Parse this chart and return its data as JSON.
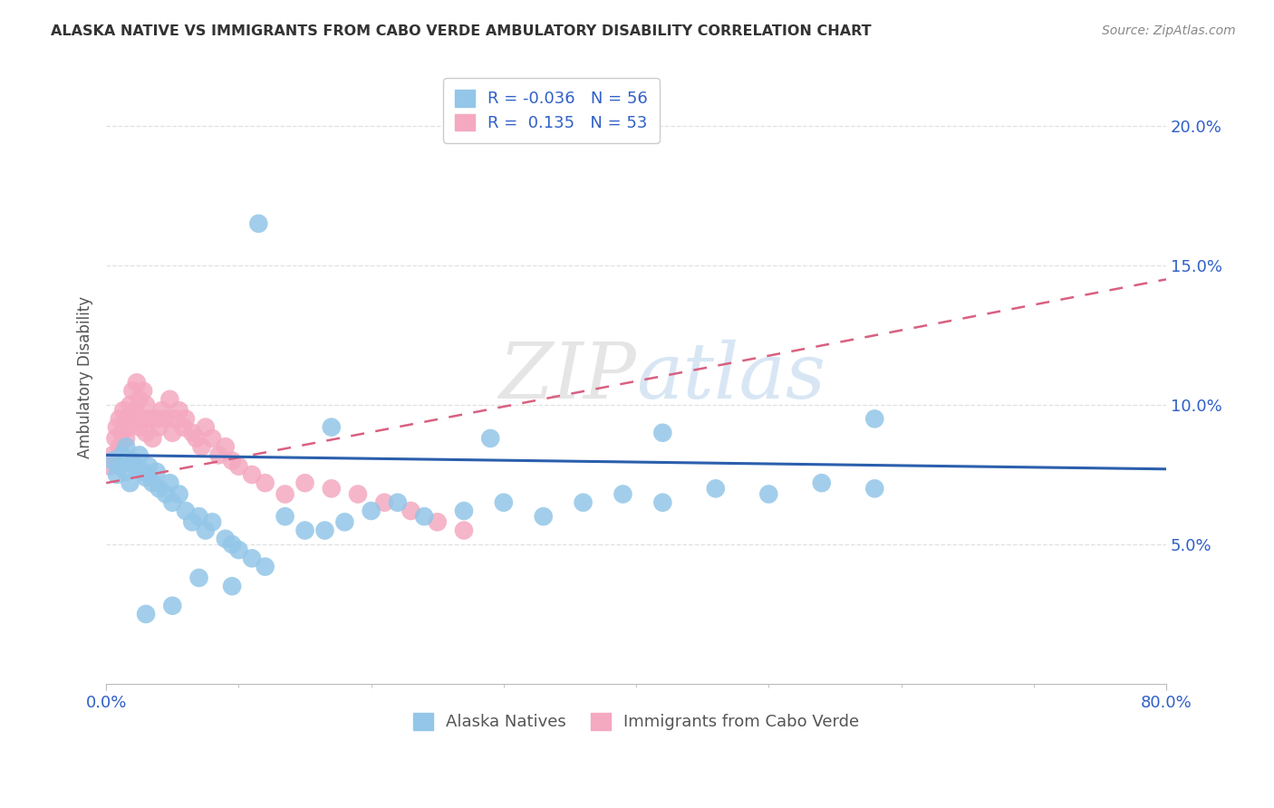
{
  "title": "ALASKA NATIVE VS IMMIGRANTS FROM CABO VERDE AMBULATORY DISABILITY CORRELATION CHART",
  "source": "Source: ZipAtlas.com",
  "ylabel": "Ambulatory Disability",
  "watermark": "ZIPatlas",
  "legend_bottom1": "Alaska Natives",
  "legend_bottom2": "Immigrants from Cabo Verde",
  "blue_color": "#93c6e8",
  "pink_color": "#f4a9c0",
  "blue_line_color": "#2b5fad",
  "pink_line_color": "#d96080",
  "grid_color": "#e0e0e0",
  "text_blue": "#3060c8",
  "label_color": "#555555",
  "xlim": [
    0.0,
    0.8
  ],
  "ylim": [
    0.0,
    0.22
  ],
  "blue_R": -0.036,
  "blue_N": 56,
  "pink_R": 0.135,
  "pink_N": 53,
  "blue_scatter_x": [
    0.005,
    0.008,
    0.01,
    0.012,
    0.015,
    0.015,
    0.018,
    0.02,
    0.022,
    0.025,
    0.028,
    0.03,
    0.032,
    0.035,
    0.038,
    0.04,
    0.045,
    0.048,
    0.05,
    0.055,
    0.06,
    0.065,
    0.07,
    0.075,
    0.08,
    0.09,
    0.095,
    0.1,
    0.11,
    0.12,
    0.135,
    0.15,
    0.165,
    0.18,
    0.2,
    0.22,
    0.24,
    0.27,
    0.3,
    0.33,
    0.36,
    0.39,
    0.42,
    0.46,
    0.5,
    0.54,
    0.58,
    0.115,
    0.03,
    0.05,
    0.07,
    0.095,
    0.58,
    0.42,
    0.29,
    0.17
  ],
  "blue_scatter_y": [
    0.08,
    0.075,
    0.078,
    0.082,
    0.076,
    0.085,
    0.072,
    0.08,
    0.078,
    0.082,
    0.076,
    0.074,
    0.078,
    0.072,
    0.076,
    0.07,
    0.068,
    0.072,
    0.065,
    0.068,
    0.062,
    0.058,
    0.06,
    0.055,
    0.058,
    0.052,
    0.05,
    0.048,
    0.045,
    0.042,
    0.06,
    0.055,
    0.055,
    0.058,
    0.062,
    0.065,
    0.06,
    0.062,
    0.065,
    0.06,
    0.065,
    0.068,
    0.065,
    0.07,
    0.068,
    0.072,
    0.07,
    0.165,
    0.025,
    0.028,
    0.038,
    0.035,
    0.095,
    0.09,
    0.088,
    0.092
  ],
  "pink_scatter_x": [
    0.003,
    0.005,
    0.007,
    0.008,
    0.01,
    0.01,
    0.012,
    0.013,
    0.015,
    0.015,
    0.017,
    0.018,
    0.02,
    0.02,
    0.022,
    0.023,
    0.025,
    0.025,
    0.027,
    0.028,
    0.03,
    0.03,
    0.032,
    0.035,
    0.038,
    0.04,
    0.042,
    0.045,
    0.048,
    0.05,
    0.052,
    0.055,
    0.058,
    0.06,
    0.065,
    0.068,
    0.072,
    0.075,
    0.08,
    0.085,
    0.09,
    0.095,
    0.1,
    0.11,
    0.12,
    0.135,
    0.15,
    0.17,
    0.19,
    0.21,
    0.23,
    0.25,
    0.27
  ],
  "pink_scatter_y": [
    0.078,
    0.082,
    0.088,
    0.092,
    0.085,
    0.095,
    0.09,
    0.098,
    0.088,
    0.095,
    0.092,
    0.1,
    0.095,
    0.105,
    0.098,
    0.108,
    0.092,
    0.102,
    0.095,
    0.105,
    0.09,
    0.1,
    0.095,
    0.088,
    0.095,
    0.092,
    0.098,
    0.095,
    0.102,
    0.09,
    0.095,
    0.098,
    0.092,
    0.095,
    0.09,
    0.088,
    0.085,
    0.092,
    0.088,
    0.082,
    0.085,
    0.08,
    0.078,
    0.075,
    0.072,
    0.068,
    0.072,
    0.07,
    0.068,
    0.065,
    0.062,
    0.058,
    0.055
  ]
}
